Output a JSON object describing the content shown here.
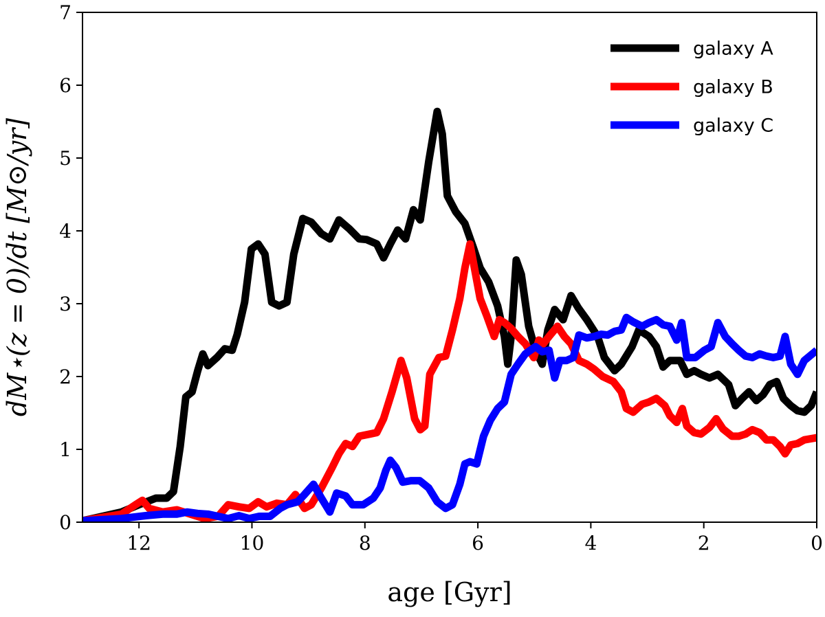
{
  "chart_data": {
    "type": "line",
    "xlabel": "age [Gyr]",
    "ylabel": "dM⋆(z = 0)/dt [M⊙/yr]",
    "xlim": [
      13,
      0
    ],
    "xticks": [
      12,
      10,
      8,
      6,
      4,
      2,
      0
    ],
    "ylim": [
      0,
      7
    ],
    "yticks": [
      0,
      1,
      2,
      3,
      4,
      5,
      6,
      7
    ],
    "grid": false,
    "legend": "upper right",
    "series": [
      {
        "name": "galaxy A",
        "color": "#000000",
        "x": [
          13,
          12.31,
          12,
          11.7,
          11.51,
          11.39,
          11.27,
          11.17,
          11.06,
          10.96,
          10.87,
          10.78,
          10.62,
          10.48,
          10.35,
          10.26,
          10.13,
          10.01,
          9.89,
          9.77,
          9.65,
          9.52,
          9.38,
          9.26,
          9.1,
          8.95,
          8.77,
          8.62,
          8.46,
          8.28,
          8.1,
          7.97,
          7.79,
          7.67,
          7.55,
          7.42,
          7.28,
          7.14,
          7.02,
          6.87,
          6.72,
          6.63,
          6.54,
          6.39,
          6.23,
          6.08,
          5.96,
          5.81,
          5.65,
          5.53,
          5.47,
          5.41,
          5.32,
          5.23,
          5.1,
          4.98,
          4.86,
          4.76,
          4.64,
          4.49,
          4.35,
          4.22,
          4.07,
          3.88,
          3.76,
          3.58,
          3.46,
          3.27,
          3.15,
          2.97,
          2.84,
          2.72,
          2.6,
          2.42,
          2.3,
          2.17,
          2.05,
          1.9,
          1.75,
          1.56,
          1.44,
          1.32,
          1.2,
          1.07,
          0.95,
          0.83,
          0.71,
          0.59,
          0.46,
          0.34,
          0.22,
          0.1,
          0
        ],
        "values": [
          0.02,
          0.14,
          0.24,
          0.33,
          0.33,
          0.42,
          1.04,
          1.72,
          1.79,
          2.08,
          2.31,
          2.15,
          2.26,
          2.38,
          2.36,
          2.58,
          3.02,
          3.75,
          3.82,
          3.68,
          3.02,
          2.97,
          3.02,
          3.68,
          4.17,
          4.12,
          3.96,
          3.89,
          4.15,
          4.03,
          3.89,
          3.88,
          3.82,
          3.63,
          3.82,
          4.01,
          3.89,
          4.29,
          4.15,
          4.95,
          5.64,
          5.33,
          4.48,
          4.26,
          4.1,
          3.77,
          3.49,
          3.3,
          2.97,
          2.55,
          2.17,
          2.55,
          3.6,
          3.4,
          2.69,
          2.36,
          2.17,
          2.64,
          2.92,
          2.78,
          3.11,
          2.94,
          2.78,
          2.55,
          2.26,
          2.08,
          2.17,
          2.41,
          2.64,
          2.55,
          2.41,
          2.13,
          2.22,
          2.22,
          2.03,
          2.08,
          2.03,
          1.98,
          2.03,
          1.89,
          1.6,
          1.7,
          1.79,
          1.67,
          1.75,
          1.89,
          1.93,
          1.7,
          1.6,
          1.53,
          1.51,
          1.6,
          1.79
        ]
      },
      {
        "name": "galaxy B",
        "color": "#ff0000",
        "x": [
          13,
          12.31,
          12.06,
          11.94,
          11.82,
          11.58,
          11.33,
          11.09,
          10.84,
          10.6,
          10.42,
          10.23,
          10.05,
          9.89,
          9.74,
          9.56,
          9.38,
          9.23,
          9.07,
          8.95,
          8.77,
          8.58,
          8.46,
          8.34,
          8.22,
          8.1,
          7.91,
          7.79,
          7.67,
          7.52,
          7.36,
          7.26,
          7.12,
          7.02,
          6.94,
          6.85,
          6.69,
          6.57,
          6.45,
          6.32,
          6.23,
          6.14,
          6.06,
          5.96,
          5.84,
          5.71,
          5.62,
          5.53,
          5.41,
          5.29,
          5.16,
          5.01,
          4.92,
          4.84,
          4.74,
          4.59,
          4.47,
          4.35,
          4.21,
          4.07,
          3.94,
          3.79,
          3.6,
          3.46,
          3.37,
          3.25,
          3.09,
          2.97,
          2.84,
          2.69,
          2.6,
          2.48,
          2.38,
          2.3,
          2.17,
          2.05,
          1.9,
          1.78,
          1.66,
          1.5,
          1.38,
          1.26,
          1.14,
          1.01,
          0.89,
          0.77,
          0.65,
          0.56,
          0.46,
          0.34,
          0.22,
          0
        ],
        "values": [
          0.02,
          0.11,
          0.24,
          0.3,
          0.19,
          0.14,
          0.17,
          0.11,
          0.05,
          0.08,
          0.24,
          0.21,
          0.19,
          0.28,
          0.21,
          0.26,
          0.24,
          0.38,
          0.19,
          0.24,
          0.47,
          0.75,
          0.94,
          1.08,
          1.04,
          1.18,
          1.21,
          1.23,
          1.42,
          1.79,
          2.22,
          1.98,
          1.42,
          1.27,
          1.32,
          2.03,
          2.26,
          2.28,
          2.64,
          3.07,
          3.49,
          3.82,
          3.49,
          3.07,
          2.83,
          2.55,
          2.78,
          2.74,
          2.66,
          2.55,
          2.45,
          2.26,
          2.5,
          2.45,
          2.55,
          2.69,
          2.55,
          2.45,
          2.22,
          2.17,
          2.1,
          2,
          1.93,
          1.79,
          1.56,
          1.51,
          1.62,
          1.65,
          1.7,
          1.6,
          1.46,
          1.37,
          1.56,
          1.32,
          1.23,
          1.21,
          1.3,
          1.42,
          1.28,
          1.18,
          1.18,
          1.21,
          1.27,
          1.23,
          1.13,
          1.13,
          1.04,
          0.94,
          1.06,
          1.08,
          1.13,
          1.16
        ]
      },
      {
        "name": "galaxy C",
        "color": "#0000ff",
        "x": [
          13,
          12.31,
          11.88,
          11.58,
          11.33,
          11.15,
          10.96,
          10.78,
          10.6,
          10.42,
          10.23,
          10.05,
          9.87,
          9.68,
          9.5,
          9.38,
          9.19,
          9.07,
          8.91,
          8.77,
          8.62,
          8.5,
          8.34,
          8.22,
          8.03,
          7.85,
          7.73,
          7.63,
          7.55,
          7.45,
          7.33,
          7.18,
          7.03,
          6.87,
          6.72,
          6.57,
          6.45,
          6.32,
          6.23,
          6.14,
          6.02,
          5.9,
          5.78,
          5.65,
          5.53,
          5.41,
          5.29,
          5.16,
          4.98,
          4.86,
          4.74,
          4.64,
          4.55,
          4.43,
          4.31,
          4.21,
          4.07,
          3.94,
          3.82,
          3.7,
          3.58,
          3.46,
          3.37,
          3.25,
          3.09,
          2.97,
          2.84,
          2.72,
          2.6,
          2.48,
          2.39,
          2.3,
          2.15,
          1.99,
          1.87,
          1.75,
          1.62,
          1.5,
          1.38,
          1.26,
          1.14,
          1.01,
          0.89,
          0.77,
          0.65,
          0.56,
          0.46,
          0.34,
          0.22,
          0
        ],
        "values": [
          0.02,
          0.05,
          0.09,
          0.11,
          0.11,
          0.14,
          0.12,
          0.11,
          0.08,
          0.05,
          0.09,
          0.05,
          0.08,
          0.08,
          0.19,
          0.24,
          0.28,
          0.38,
          0.52,
          0.33,
          0.14,
          0.4,
          0.36,
          0.24,
          0.24,
          0.33,
          0.47,
          0.71,
          0.85,
          0.75,
          0.55,
          0.57,
          0.57,
          0.47,
          0.28,
          0.19,
          0.24,
          0.52,
          0.8,
          0.83,
          0.8,
          1.18,
          1.4,
          1.56,
          1.65,
          2.03,
          2.17,
          2.31,
          2.41,
          2.34,
          2.36,
          1.98,
          2.22,
          2.22,
          2.26,
          2.57,
          2.53,
          2.55,
          2.58,
          2.57,
          2.62,
          2.64,
          2.81,
          2.75,
          2.69,
          2.74,
          2.78,
          2.71,
          2.69,
          2.5,
          2.74,
          2.26,
          2.26,
          2.36,
          2.41,
          2.74,
          2.55,
          2.45,
          2.36,
          2.28,
          2.26,
          2.31,
          2.28,
          2.26,
          2.28,
          2.55,
          2.17,
          2.03,
          2.22,
          2.36
        ]
      }
    ]
  }
}
